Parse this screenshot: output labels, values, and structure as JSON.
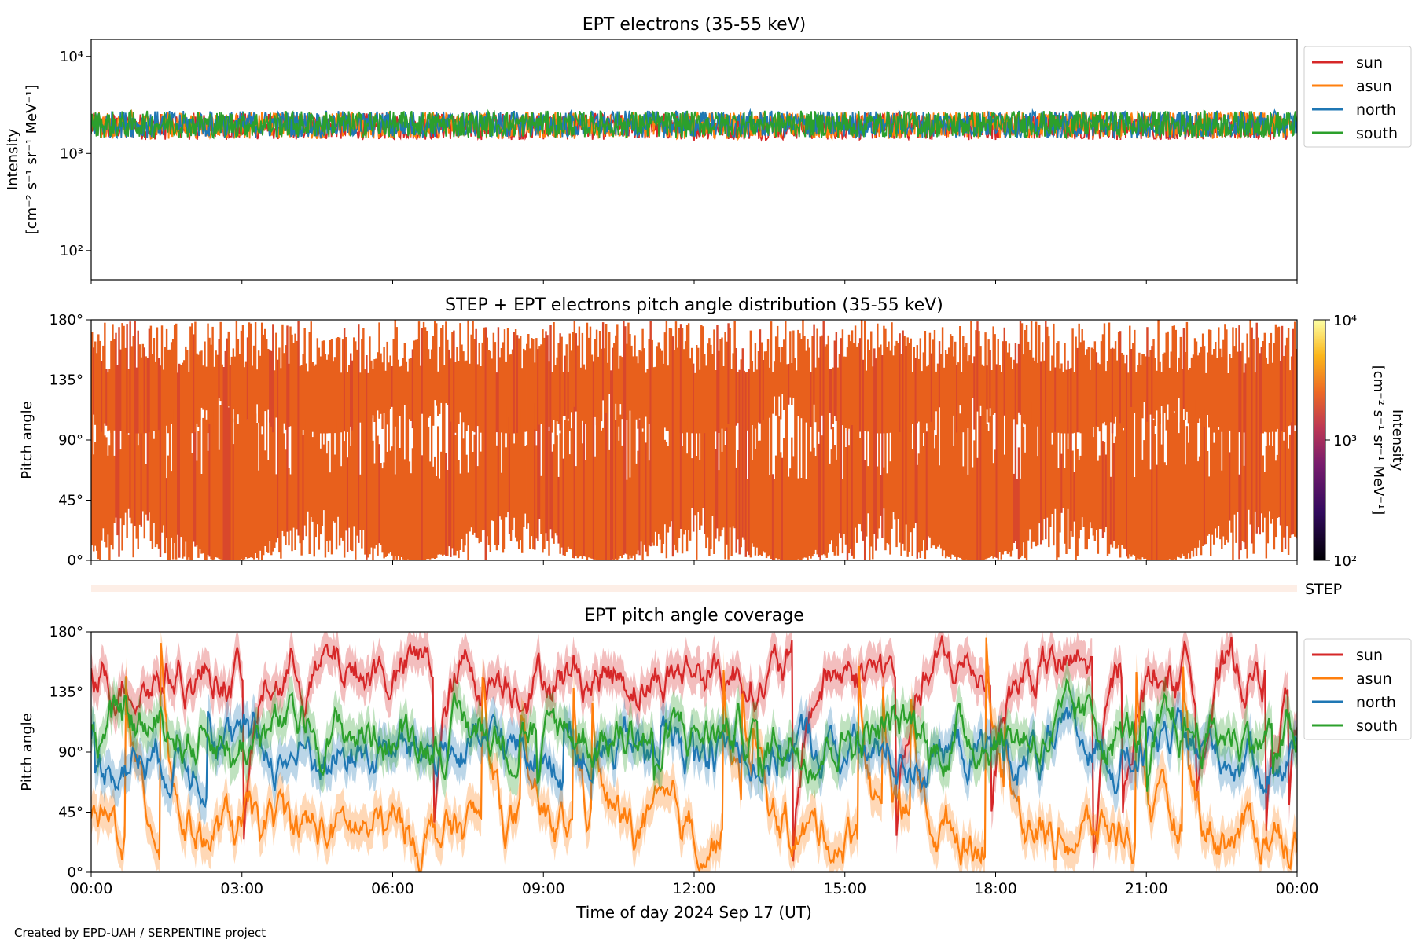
{
  "colors": {
    "sun": "#d62728",
    "asun": "#ff7f0e",
    "north": "#1f77b4",
    "south": "#2ca02c",
    "pad_orange": "#e8601c"
  },
  "footer": "Created by EPD-UAH / SERPENTINE project",
  "chart_data": [
    {
      "id": "intensity",
      "type": "line",
      "title": "EPT electrons (35-55 keV)",
      "ylabel_line1": "Intensity",
      "ylabel_line2": "[cm⁻² s⁻¹ sr⁻¹ MeV⁻¹]",
      "yscale": "log",
      "ylim": [
        50,
        15000
      ],
      "yticks": [
        {
          "v": 100,
          "label": "10²"
        },
        {
          "v": 1000,
          "label": "10³"
        },
        {
          "v": 10000,
          "label": "10⁴"
        }
      ],
      "xlim_hours": [
        0,
        24
      ],
      "series": [
        {
          "name": "sun",
          "color": "#d62728",
          "mean": 1900
        },
        {
          "name": "asun",
          "color": "#ff7f0e",
          "mean": 1950
        },
        {
          "name": "north",
          "color": "#1f77b4",
          "mean": 2000
        },
        {
          "name": "south",
          "color": "#2ca02c",
          "mean": 2000
        }
      ],
      "legend": [
        "sun",
        "asun",
        "north",
        "south"
      ],
      "legend_position": "outside-right-top"
    },
    {
      "id": "pad",
      "type": "heatmap",
      "title": "STEP + EPT electrons pitch angle distribution (35-55 keV)",
      "ylabel": "Pitch angle",
      "ylim": [
        0,
        180
      ],
      "yticks": [
        "0°",
        "45°",
        "90°",
        "135°",
        "180°"
      ],
      "ytick_values": [
        0,
        45,
        90,
        135,
        180
      ],
      "xlim_hours": [
        0,
        24
      ],
      "colorbar": {
        "label_line1": "Intensity",
        "label_line2": "[cm⁻² s⁻¹ sr⁻¹ MeV⁻¹]",
        "scale": "log",
        "range": [
          100,
          10000
        ],
        "ticks": [
          {
            "v": 100,
            "label": "10²"
          },
          {
            "v": 1000,
            "label": "10³"
          },
          {
            "v": 10000,
            "label": "10⁴"
          }
        ]
      },
      "step_label": "STEP"
    },
    {
      "id": "coverage",
      "type": "line",
      "title": "EPT pitch angle coverage",
      "ylabel": "Pitch angle",
      "ylim": [
        0,
        180
      ],
      "yticks": [
        "0°",
        "45°",
        "90°",
        "135°",
        "180°"
      ],
      "ytick_values": [
        0,
        45,
        90,
        135,
        180
      ],
      "xlabel": "Time of day 2024 Sep 17 (UT)",
      "xticks": [
        "00:00",
        "03:00",
        "06:00",
        "09:00",
        "12:00",
        "15:00",
        "18:00",
        "21:00",
        "00:00"
      ],
      "xtick_hours": [
        0,
        3,
        6,
        9,
        12,
        15,
        18,
        21,
        24
      ],
      "xlim_hours": [
        0,
        24
      ],
      "series": [
        {
          "name": "sun",
          "color": "#d62728",
          "mean": 150
        },
        {
          "name": "asun",
          "color": "#ff7f0e",
          "mean": 30
        },
        {
          "name": "north",
          "color": "#1f77b4",
          "mean": 90
        },
        {
          "name": "south",
          "color": "#2ca02c",
          "mean": 105
        }
      ],
      "legend": [
        "sun",
        "asun",
        "north",
        "south"
      ],
      "legend_position": "outside-right-top"
    }
  ]
}
